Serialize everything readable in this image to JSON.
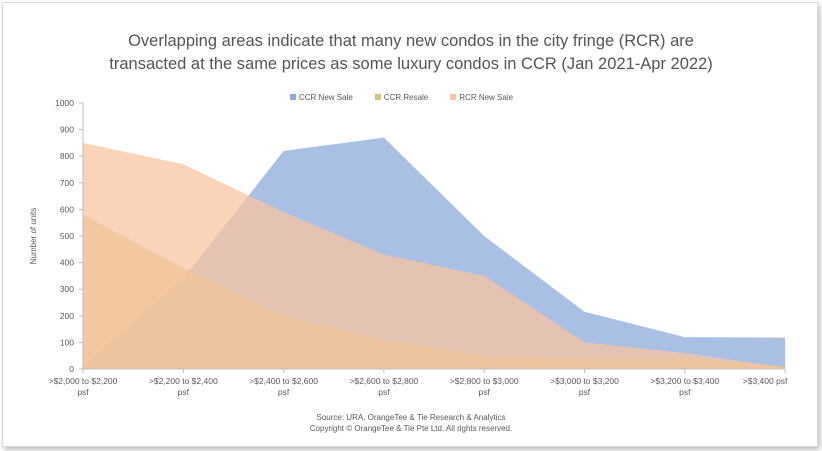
{
  "title_line1": "Overlapping areas indicate that many new condos in the city fringe (RCR) are",
  "title_line2": "transacted at the same prices as some luxury condos in CCR (Jan 2021-Apr 2022)",
  "source_line1": "Source: URA, OrangeTee & Tie Research & Analytics",
  "source_line2": "Copyright © OrangeTee & Tie Pte Ltd. All rights reserved.",
  "chart_data": {
    "type": "area",
    "title": "Overlapping areas indicate that many new condos in the city fringe (RCR) are transacted at the same prices as some luxury condos in CCR (Jan 2021-Apr 2022)",
    "ylabel": "Number of units",
    "xlabel": "",
    "ylim": [
      0,
      1000
    ],
    "yticks": [
      0,
      100,
      200,
      300,
      400,
      500,
      600,
      700,
      800,
      900,
      1000
    ],
    "legend_position": "top-center",
    "grid": false,
    "categories": [
      [
        ">$2,000 to $2,200",
        "psf"
      ],
      [
        ">$2,200 to $2,400",
        "psf"
      ],
      [
        ">$2,400 to $2,600",
        "psf"
      ],
      [
        ">$2,600 to $2,800",
        "psf"
      ],
      [
        ">$2,800 to $3,000",
        "psf"
      ],
      [
        ">$3,000 to $3,200",
        "psf"
      ],
      [
        ">$3,200 to $3,400",
        "psf"
      ],
      [
        ">$3,400 psf"
      ]
    ],
    "series": [
      {
        "name": "CCR New Sale",
        "color": "#8eaadb",
        "values": [
          10,
          340,
          820,
          870,
          500,
          215,
          120,
          118
        ]
      },
      {
        "name": "CCR Resale",
        "color": "#d9c27a",
        "values": [
          580,
          380,
          200,
          110,
          50,
          40,
          40,
          10
        ]
      },
      {
        "name": "RCR New Sale",
        "color": "#f8c4a2",
        "values": [
          850,
          770,
          590,
          430,
          350,
          100,
          60,
          5
        ]
      }
    ]
  }
}
